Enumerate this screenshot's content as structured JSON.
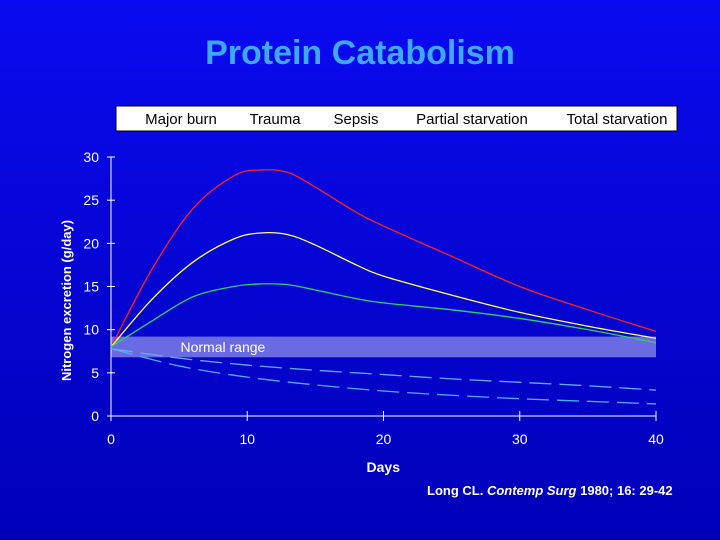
{
  "chart_data": {
    "type": "line",
    "title": "Protein Catabolism",
    "xlabel": "Days",
    "ylabel": "Nitrogen excretion (g/day)",
    "xlim": [
      0,
      40
    ],
    "ylim": [
      0,
      30
    ],
    "xticks": [
      0,
      10,
      20,
      30,
      40
    ],
    "yticks": [
      0,
      5,
      10,
      15,
      20,
      25,
      30
    ],
    "legend_position": "top",
    "normal_range": {
      "label": "Normal range",
      "y": [
        6.8,
        9.2
      ]
    },
    "series": [
      {
        "name": "Major burn",
        "color": "#ff2020",
        "style": "solid",
        "x": [
          0,
          3,
          6,
          9,
          11,
          13,
          15,
          18,
          20,
          25,
          30,
          35,
          40
        ],
        "y": [
          8,
          17,
          24,
          27.8,
          28.5,
          28.2,
          26.5,
          23.6,
          22,
          18.5,
          15,
          12.3,
          9.8
        ]
      },
      {
        "name": "Trauma",
        "color": "#ffff66",
        "style": "solid",
        "x": [
          0,
          3,
          6,
          9,
          11,
          13,
          15,
          18,
          20,
          25,
          30,
          35,
          40
        ],
        "y": [
          8,
          13.5,
          17.8,
          20.5,
          21.2,
          21,
          19.8,
          17.5,
          16.2,
          14,
          12,
          10.4,
          9
        ]
      },
      {
        "name": "Sepsis",
        "color": "#2fcf6f",
        "style": "solid",
        "x": [
          0,
          3,
          6,
          9,
          11,
          13,
          15,
          18,
          20,
          25,
          30,
          35,
          40
        ],
        "y": [
          8,
          11,
          13.8,
          15,
          15.3,
          15.2,
          14.6,
          13.6,
          13.1,
          12.3,
          11.3,
          10,
          8.5
        ]
      },
      {
        "name": "Partial starvation",
        "color": "#66aaff",
        "style": "dashed",
        "x": [
          0,
          5,
          10,
          15,
          20,
          25,
          30,
          35,
          40
        ],
        "y": [
          7.8,
          6.7,
          5.9,
          5.3,
          4.8,
          4.3,
          3.9,
          3.5,
          3
        ]
      },
      {
        "name": "Total starvation",
        "color": "#55aaff",
        "style": "dashed",
        "x": [
          0,
          5,
          10,
          15,
          20,
          25,
          30,
          35,
          40
        ],
        "y": [
          7.8,
          5.8,
          4.5,
          3.6,
          2.9,
          2.4,
          2,
          1.7,
          1.4
        ]
      }
    ]
  },
  "credit": {
    "prefix": "Long CL. ",
    "journal": "Contemp Surg",
    "suffix": " 1980; 16: 29-42"
  }
}
